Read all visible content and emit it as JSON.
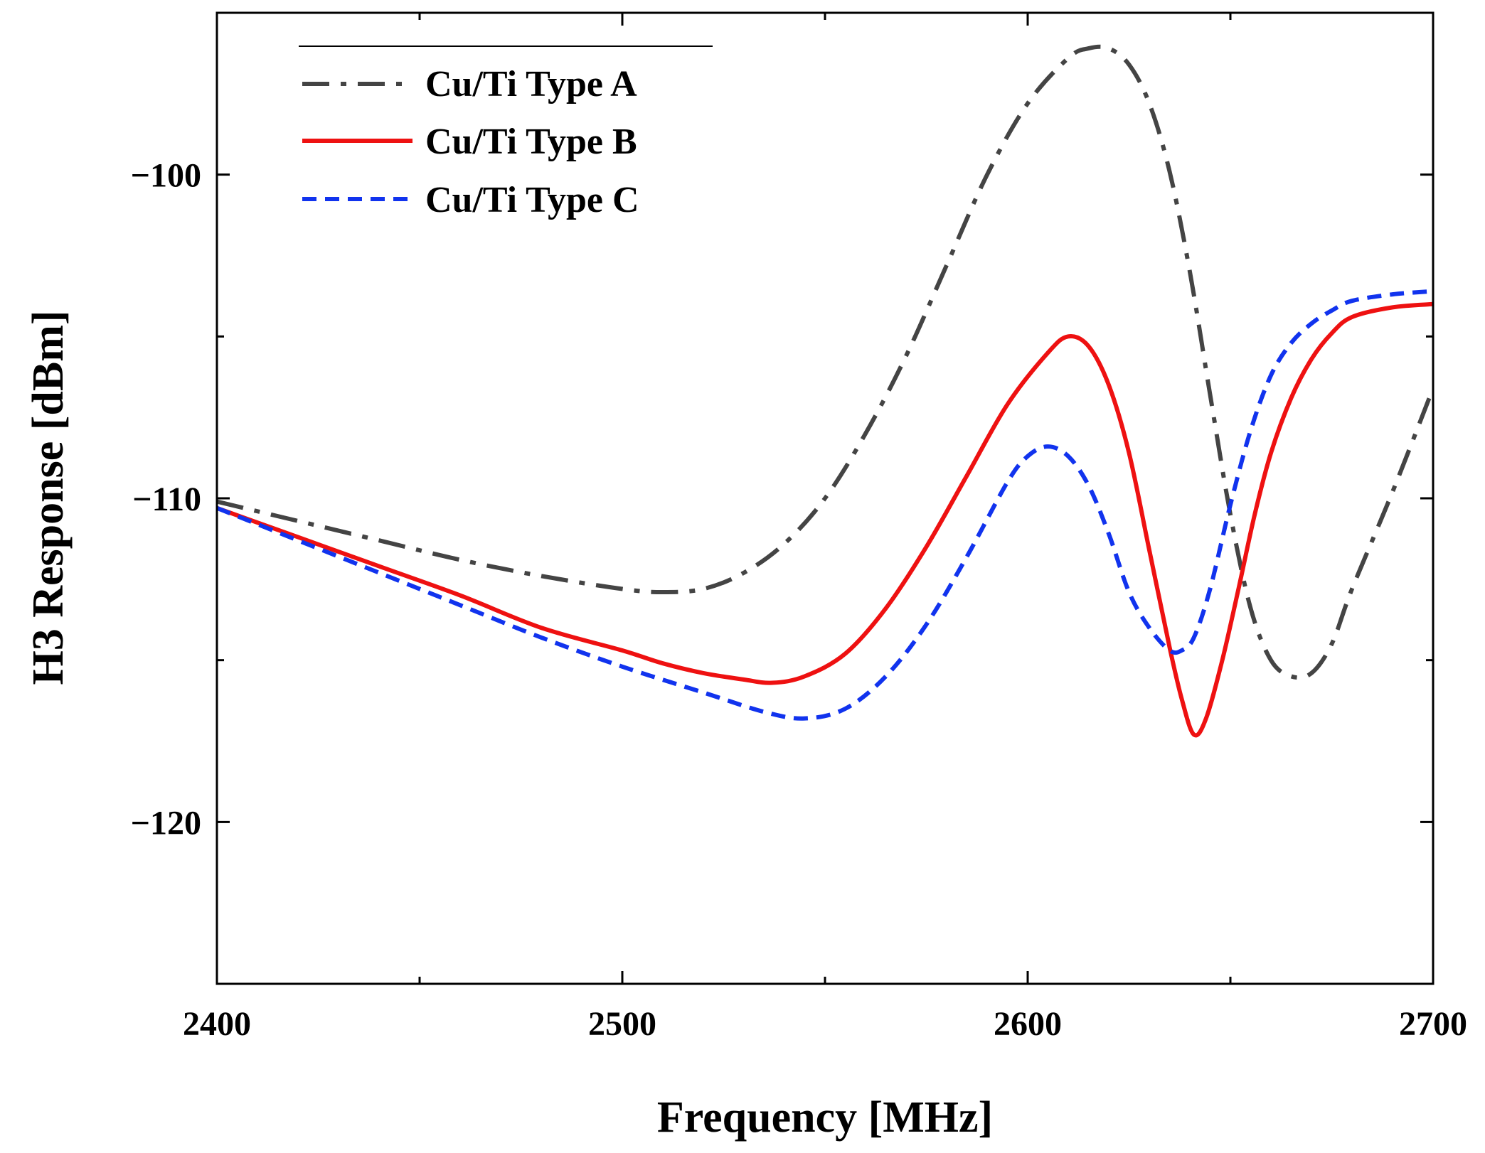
{
  "chart_data": {
    "type": "line",
    "title": "",
    "xlabel": "Frequency [MHz]",
    "ylabel": "H3 Response [dBm]",
    "xlim": [
      2400,
      2700
    ],
    "ylim": [
      -125,
      -95
    ],
    "xticks": [
      2400,
      2500,
      2600,
      2700
    ],
    "xtick_labels": [
      "2400",
      "2500",
      "2600",
      "2700"
    ],
    "yticks": [
      -120,
      -110,
      -100
    ],
    "ytick_labels": [
      "−120",
      "−110",
      "−100"
    ],
    "legend_position": "top-left",
    "series": [
      {
        "name": "Cu/Ti Type A",
        "color": "#444444",
        "style": "dashdot",
        "x": [
          2400,
          2420,
          2440,
          2460,
          2480,
          2500,
          2510,
          2520,
          2530,
          2540,
          2550,
          2560,
          2570,
          2580,
          2590,
          2600,
          2610,
          2615,
          2620,
          2625,
          2630,
          2635,
          2640,
          2645,
          2650,
          2655,
          2660,
          2665,
          2670,
          2675,
          2680,
          2690,
          2700
        ],
        "y": [
          -110.1,
          -110.7,
          -111.3,
          -111.9,
          -112.4,
          -112.8,
          -112.9,
          -112.8,
          -112.3,
          -111.4,
          -110.0,
          -108.0,
          -105.6,
          -102.8,
          -100.0,
          -97.8,
          -96.4,
          -96.1,
          -96.1,
          -96.6,
          -97.8,
          -99.9,
          -103.0,
          -106.8,
          -110.5,
          -113.4,
          -115.0,
          -115.5,
          -115.4,
          -114.5,
          -112.8,
          -109.8,
          -106.6
        ]
      },
      {
        "name": "Cu/Ti Type B",
        "color": "#ee1111",
        "style": "solid",
        "x": [
          2400,
          2420,
          2440,
          2460,
          2480,
          2500,
          2510,
          2520,
          2530,
          2537,
          2545,
          2555,
          2565,
          2575,
          2585,
          2595,
          2605,
          2610,
          2615,
          2620,
          2625,
          2630,
          2635,
          2638,
          2641,
          2644,
          2648,
          2652,
          2656,
          2660,
          2665,
          2670,
          2675,
          2680,
          2690,
          2700
        ],
        "y": [
          -110.3,
          -111.2,
          -112.1,
          -113.0,
          -114.0,
          -114.7,
          -115.1,
          -115.4,
          -115.6,
          -115.7,
          -115.5,
          -114.8,
          -113.4,
          -111.5,
          -109.3,
          -107.1,
          -105.5,
          -105.0,
          -105.3,
          -106.5,
          -108.6,
          -111.6,
          -114.6,
          -116.2,
          -117.3,
          -116.8,
          -115.0,
          -112.8,
          -110.5,
          -108.6,
          -106.9,
          -105.7,
          -104.9,
          -104.4,
          -104.1,
          -104.0
        ]
      },
      {
        "name": "Cu/Ti Type C",
        "color": "#1133ee",
        "style": "dashed",
        "x": [
          2400,
          2420,
          2440,
          2460,
          2480,
          2500,
          2520,
          2535,
          2545,
          2555,
          2565,
          2575,
          2585,
          2595,
          2600,
          2605,
          2610,
          2615,
          2620,
          2625,
          2630,
          2635,
          2638,
          2641,
          2645,
          2650,
          2655,
          2660,
          2665,
          2670,
          2675,
          2680,
          2690,
          2700
        ],
        "y": [
          -110.3,
          -111.3,
          -112.3,
          -113.3,
          -114.3,
          -115.2,
          -116.0,
          -116.6,
          -116.8,
          -116.5,
          -115.5,
          -113.9,
          -111.8,
          -109.5,
          -108.7,
          -108.4,
          -108.7,
          -109.6,
          -111.1,
          -112.9,
          -114.0,
          -114.7,
          -114.7,
          -114.3,
          -112.8,
          -110.2,
          -107.9,
          -106.2,
          -105.2,
          -104.6,
          -104.2,
          -103.9,
          -103.7,
          -103.6
        ]
      }
    ]
  }
}
